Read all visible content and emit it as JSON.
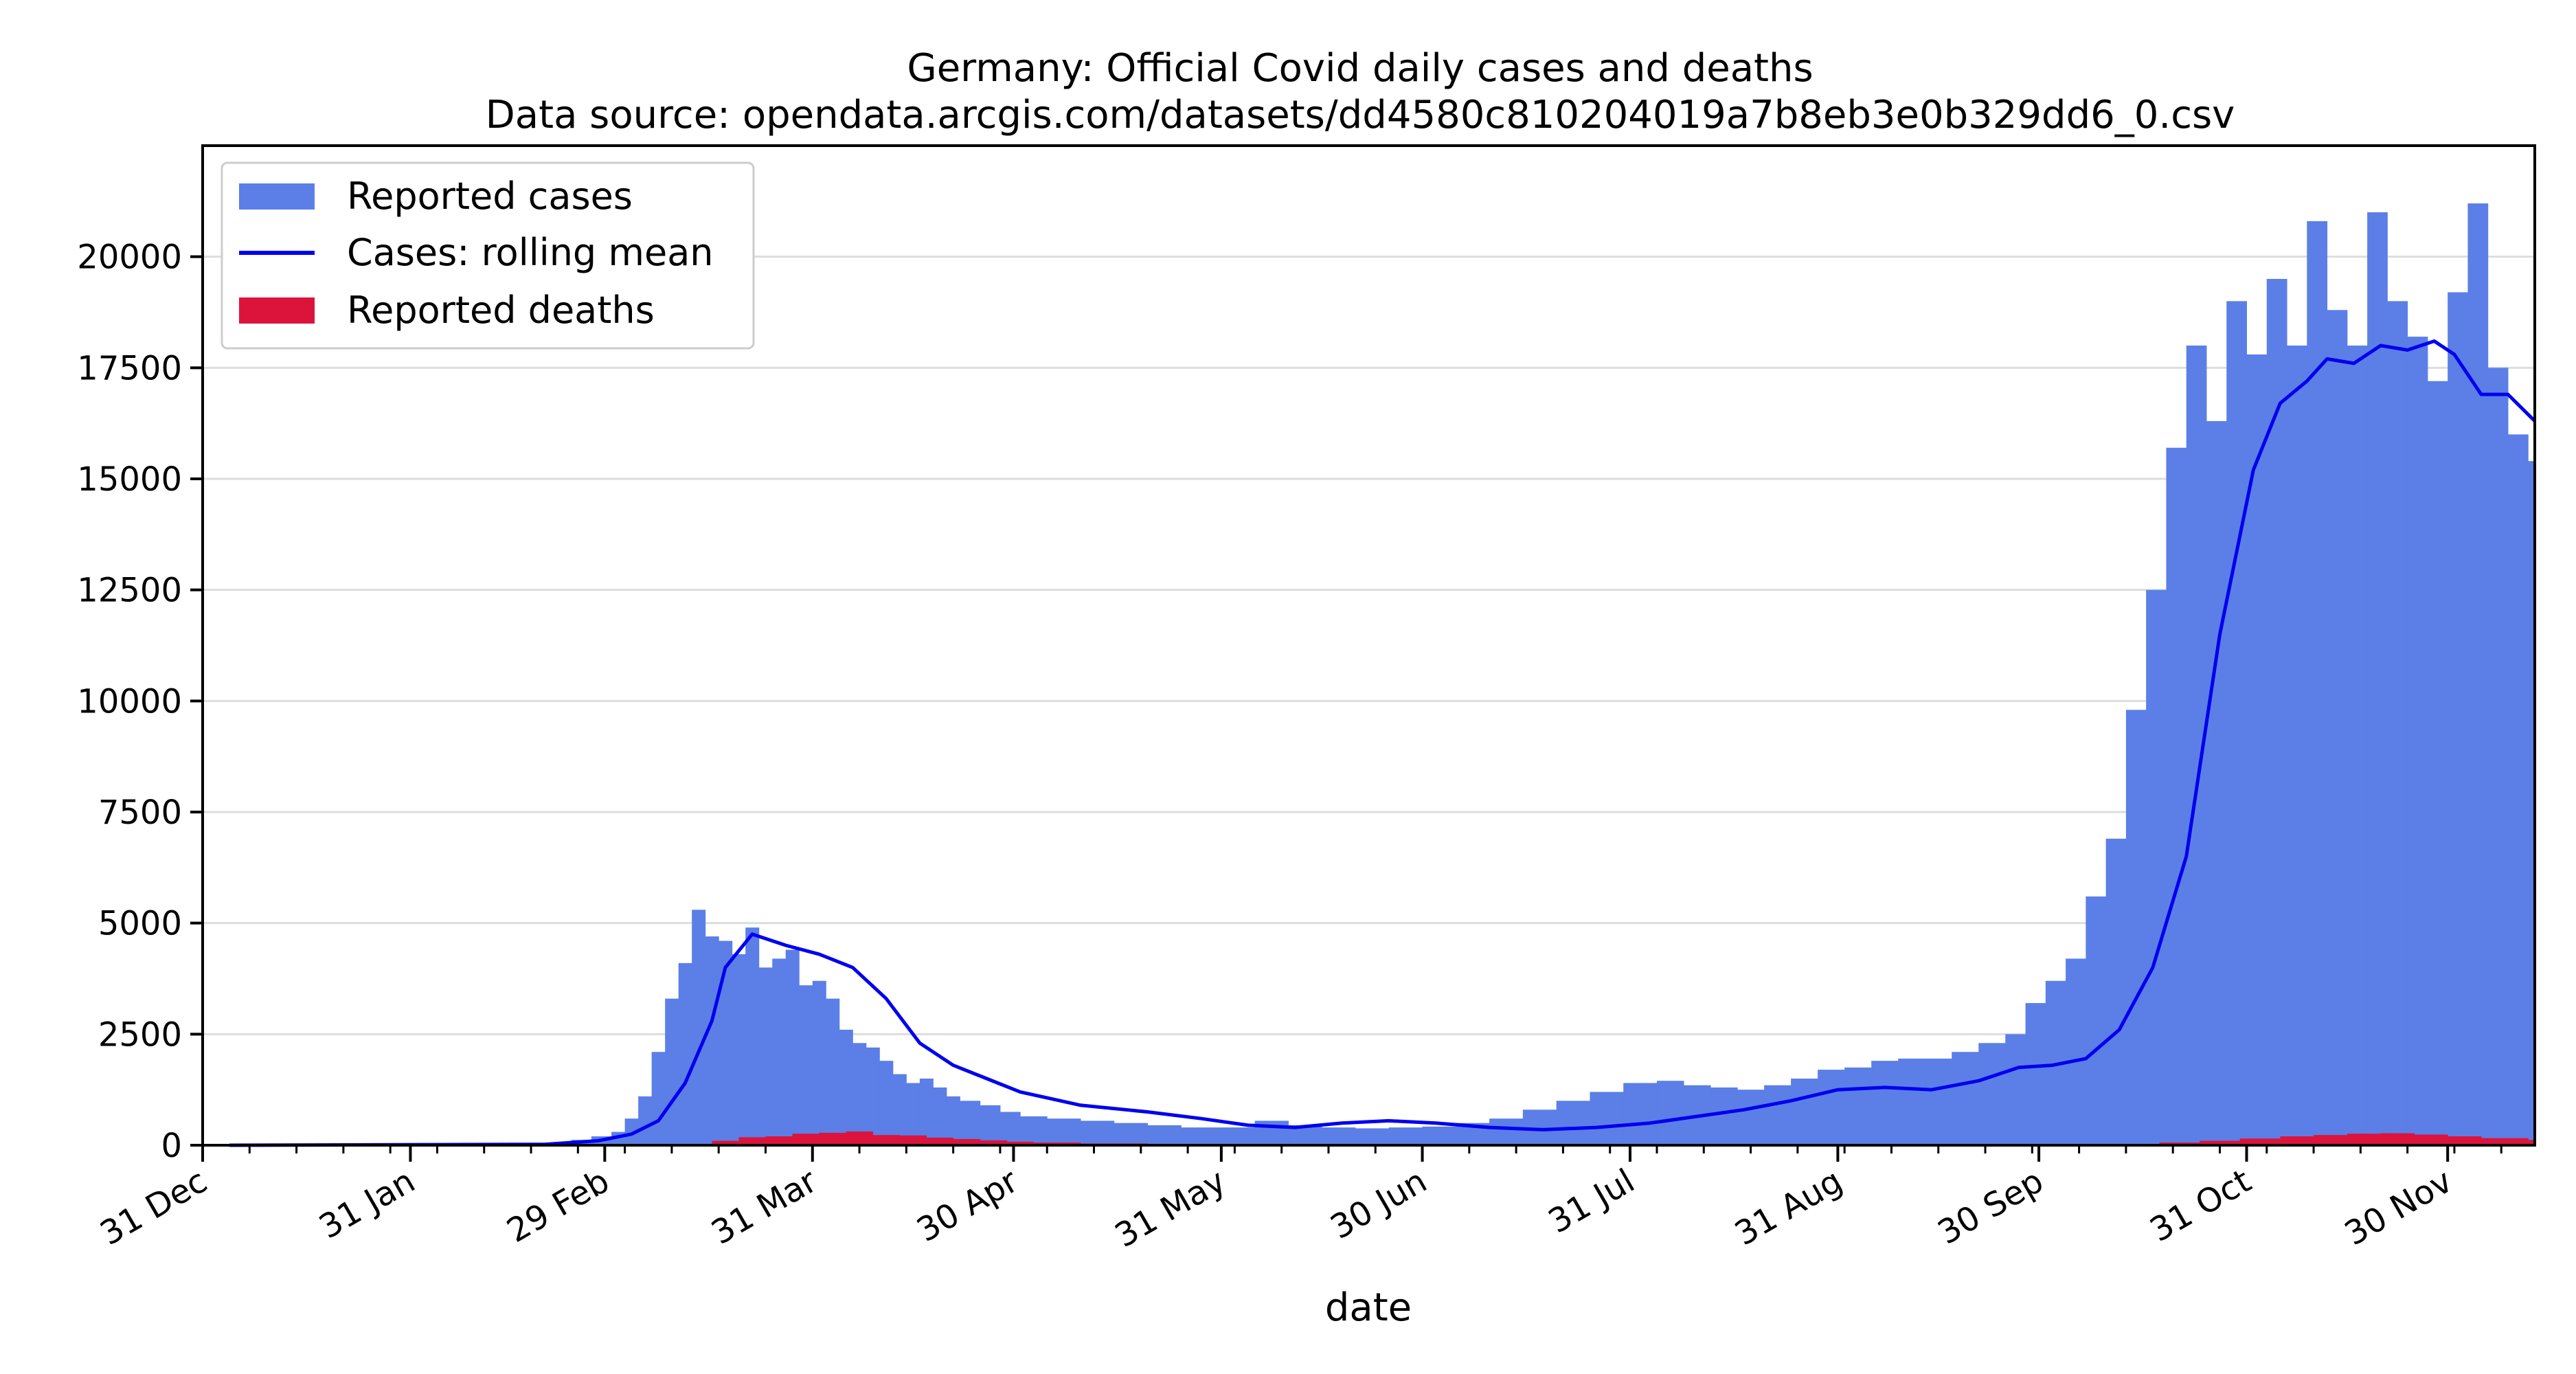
{
  "chart_data": {
    "type": "bar",
    "title": "Germany: Official Covid daily cases and deaths",
    "subtitle": "Data source: opendata.arcgis.com/datasets/dd4580c810204019a7b8eb3e0b329dd6_0.csv",
    "xlabel": "date",
    "ylabel": "",
    "x_start": "2019-12-31",
    "x_end": "2020-12-13",
    "ylim": [
      0,
      22500
    ],
    "yticks": [
      0,
      2500,
      5000,
      7500,
      10000,
      12500,
      15000,
      17500,
      20000
    ],
    "ytick_labels": [
      "0",
      "2500",
      "5000",
      "7500",
      "10000",
      "12500",
      "15000",
      "17500",
      "20000"
    ],
    "xtick_labels": [
      "31 Dec",
      "31 Jan",
      "29 Feb",
      "31 Mar",
      "30 Apr",
      "31 May",
      "30 Jun",
      "31 Jul",
      "31 Aug",
      "30 Sep",
      "31 Oct",
      "30 Nov"
    ],
    "xtick_dates": [
      "2019-12-31",
      "2020-01-31",
      "2020-02-29",
      "2020-03-31",
      "2020-04-30",
      "2020-05-31",
      "2020-06-30",
      "2020-07-31",
      "2020-08-31",
      "2020-09-30",
      "2020-10-31",
      "2020-11-30"
    ],
    "grid": "horizontal",
    "legend_position": "top-left",
    "colors": {
      "cases": "#5b7fe6",
      "rolling_mean": "#0000ee",
      "deaths": "#dc143c",
      "grid": "#dddddd"
    },
    "series": [
      {
        "name": "Reported cases",
        "kind": "bar",
        "color": "#5b7fe6",
        "x": [
          "2020-01-06",
          "2020-01-16",
          "2020-01-26",
          "2020-02-05",
          "2020-02-15",
          "2020-02-21",
          "2020-02-24",
          "2020-02-27",
          "2020-03-01",
          "2020-03-03",
          "2020-03-05",
          "2020-03-07",
          "2020-03-09",
          "2020-03-11",
          "2020-03-13",
          "2020-03-15",
          "2020-03-17",
          "2020-03-19",
          "2020-03-21",
          "2020-03-23",
          "2020-03-25",
          "2020-03-27",
          "2020-03-29",
          "2020-03-31",
          "2020-04-02",
          "2020-04-04",
          "2020-04-06",
          "2020-04-08",
          "2020-04-10",
          "2020-04-12",
          "2020-04-14",
          "2020-04-16",
          "2020-04-18",
          "2020-04-20",
          "2020-04-22",
          "2020-04-25",
          "2020-04-28",
          "2020-05-01",
          "2020-05-05",
          "2020-05-10",
          "2020-05-15",
          "2020-05-20",
          "2020-05-25",
          "2020-05-30",
          "2020-06-05",
          "2020-06-10",
          "2020-06-15",
          "2020-06-20",
          "2020-06-25",
          "2020-06-30",
          "2020-07-05",
          "2020-07-10",
          "2020-07-15",
          "2020-07-20",
          "2020-07-25",
          "2020-07-30",
          "2020-08-04",
          "2020-08-08",
          "2020-08-12",
          "2020-08-16",
          "2020-08-20",
          "2020-08-24",
          "2020-08-28",
          "2020-09-01",
          "2020-09-05",
          "2020-09-09",
          "2020-09-13",
          "2020-09-17",
          "2020-09-21",
          "2020-09-25",
          "2020-09-28",
          "2020-10-01",
          "2020-10-04",
          "2020-10-07",
          "2020-10-10",
          "2020-10-13",
          "2020-10-16",
          "2020-10-19",
          "2020-10-22",
          "2020-10-25",
          "2020-10-28",
          "2020-10-31",
          "2020-11-03",
          "2020-11-06",
          "2020-11-09",
          "2020-11-12",
          "2020-11-15",
          "2020-11-18",
          "2020-11-21",
          "2020-11-24",
          "2020-11-27",
          "2020-11-30",
          "2020-12-03",
          "2020-12-06",
          "2020-12-09",
          "2020-12-12"
        ],
        "values": [
          10,
          10,
          10,
          10,
          20,
          60,
          120,
          200,
          300,
          600,
          1100,
          2100,
          3300,
          4100,
          5300,
          4700,
          4600,
          4300,
          4900,
          4000,
          4200,
          4400,
          3600,
          3700,
          3300,
          2600,
          2300,
          2200,
          1900,
          1600,
          1400,
          1500,
          1300,
          1100,
          1000,
          900,
          750,
          650,
          600,
          550,
          500,
          450,
          400,
          400,
          550,
          450,
          400,
          380,
          400,
          420,
          500,
          600,
          800,
          1000,
          1200,
          1400,
          1450,
          1350,
          1300,
          1250,
          1350,
          1500,
          1700,
          1750,
          1900,
          1950,
          1950,
          2100,
          2300,
          2500,
          3200,
          3700,
          4200,
          5600,
          6900,
          9800,
          12500,
          15700,
          18000,
          16300,
          19000,
          17800,
          19500,
          18000,
          20800,
          18800,
          18000,
          21000,
          19000,
          18200,
          17200,
          19200,
          21200,
          17500,
          16000,
          15400
        ]
      },
      {
        "name": "Cases: rolling mean",
        "kind": "line",
        "color": "#0000ee",
        "x": [
          "2020-01-04",
          "2020-02-20",
          "2020-02-28",
          "2020-03-04",
          "2020-03-08",
          "2020-03-12",
          "2020-03-16",
          "2020-03-18",
          "2020-03-22",
          "2020-03-27",
          "2020-04-01",
          "2020-04-06",
          "2020-04-11",
          "2020-04-16",
          "2020-04-21",
          "2020-04-26",
          "2020-05-01",
          "2020-05-10",
          "2020-05-20",
          "2020-05-28",
          "2020-06-04",
          "2020-06-11",
          "2020-06-18",
          "2020-06-25",
          "2020-07-02",
          "2020-07-10",
          "2020-07-18",
          "2020-07-26",
          "2020-08-03",
          "2020-08-10",
          "2020-08-17",
          "2020-08-24",
          "2020-08-31",
          "2020-09-07",
          "2020-09-14",
          "2020-09-21",
          "2020-09-27",
          "2020-10-02",
          "2020-10-07",
          "2020-10-12",
          "2020-10-17",
          "2020-10-22",
          "2020-10-27",
          "2020-11-01",
          "2020-11-05",
          "2020-11-09",
          "2020-11-12",
          "2020-11-16",
          "2020-11-20",
          "2020-11-24",
          "2020-11-28",
          "2020-12-01",
          "2020-12-05",
          "2020-12-09",
          "2020-12-13"
        ],
        "values": [
          0,
          20,
          100,
          250,
          550,
          1400,
          2800,
          4000,
          4750,
          4500,
          4300,
          4000,
          3300,
          2300,
          1800,
          1500,
          1200,
          900,
          750,
          600,
          450,
          400,
          500,
          550,
          500,
          400,
          350,
          400,
          500,
          650,
          800,
          1000,
          1250,
          1300,
          1250,
          1450,
          1750,
          1800,
          1950,
          2600,
          4000,
          6500,
          11500,
          15200,
          16700,
          17200,
          17700,
          17600,
          18000,
          17900,
          18100,
          17800,
          16900,
          16900,
          16300
        ]
      },
      {
        "name": "Reported deaths",
        "kind": "bar",
        "color": "#dc143c",
        "x": [
          "2020-03-12",
          "2020-03-16",
          "2020-03-20",
          "2020-03-24",
          "2020-03-28",
          "2020-04-01",
          "2020-04-05",
          "2020-04-09",
          "2020-04-13",
          "2020-04-17",
          "2020-04-21",
          "2020-04-25",
          "2020-04-29",
          "2020-05-03",
          "2020-05-10",
          "2020-05-20",
          "2020-06-01",
          "2020-06-15",
          "2020-07-01",
          "2020-07-15",
          "2020-08-01",
          "2020-08-15",
          "2020-09-01",
          "2020-09-15",
          "2020-10-01",
          "2020-10-10",
          "2020-10-18",
          "2020-10-24",
          "2020-10-30",
          "2020-11-05",
          "2020-11-10",
          "2020-11-15",
          "2020-11-20",
          "2020-11-25",
          "2020-11-30",
          "2020-12-05",
          "2020-12-12"
        ],
        "values": [
          20,
          100,
          180,
          200,
          260,
          280,
          310,
          230,
          220,
          170,
          140,
          110,
          80,
          60,
          40,
          20,
          10,
          5,
          5,
          5,
          5,
          5,
          5,
          8,
          15,
          30,
          60,
          100,
          150,
          200,
          230,
          260,
          270,
          240,
          200,
          160,
          120
        ]
      }
    ]
  }
}
